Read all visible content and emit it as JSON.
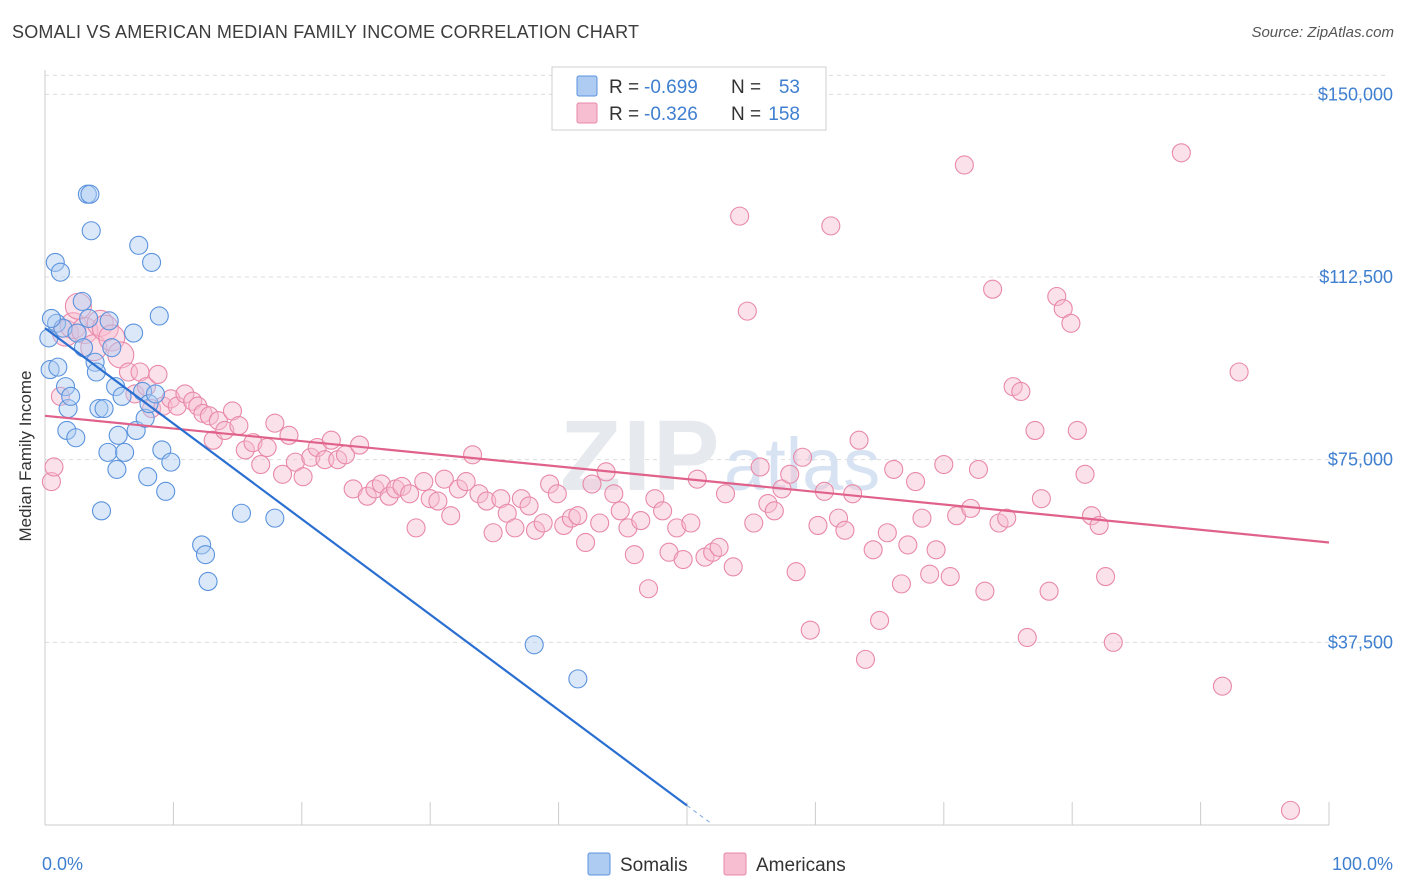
{
  "title": "SOMALI VS AMERICAN MEDIAN FAMILY INCOME CORRELATION CHART",
  "source": "Source: ZipAtlas.com",
  "watermark": {
    "part1": "ZIP",
    "part2": "atlas"
  },
  "legend": {
    "r_label": "R =",
    "n_label": "N =",
    "rows": [
      {
        "r": "-0.699",
        "n": "53"
      },
      {
        "r": "-0.326",
        "n": "158"
      }
    ]
  },
  "colors": {
    "somali_fill": "#aecbf2",
    "somali_stroke": "#5b93dd",
    "somali_line": "#2a6fd1",
    "american_fill": "#f7bdd0",
    "american_stroke": "#e889a8",
    "american_line": "#e0628a"
  },
  "chart_data": {
    "type": "scatter",
    "title": "SOMALI VS AMERICAN MEDIAN FAMILY INCOME CORRELATION CHART",
    "xlabel": "",
    "ylabel": "Median Family Income",
    "x_range": [
      0,
      100
    ],
    "y_range": [
      0,
      155000
    ],
    "x_tick_labels": [
      "0.0%",
      "100.0%"
    ],
    "y_ticks": [
      {
        "value": 37500,
        "label": "$37,500"
      },
      {
        "value": 75000,
        "label": "$75,000"
      },
      {
        "value": 112500,
        "label": "$112,500"
      },
      {
        "value": 150000,
        "label": "$150,000"
      }
    ],
    "grid": true,
    "legend_position": "bottom-center",
    "series": [
      {
        "name": "Somalis",
        "trend": {
          "x0": 0,
          "y0": 102000,
          "x1": 50,
          "y1": 4000,
          "dash_to_x": 52
        },
        "points": [
          [
            0.3,
            100000
          ],
          [
            0.4,
            93500
          ],
          [
            0.8,
            115500
          ],
          [
            0.9,
            103000
          ],
          [
            1.0,
            94000
          ],
          [
            1.2,
            113500
          ],
          [
            1.4,
            102000
          ],
          [
            1.6,
            90000
          ],
          [
            1.8,
            85500
          ],
          [
            1.7,
            81000
          ],
          [
            2.4,
            79500
          ],
          [
            2.5,
            101000
          ],
          [
            2.9,
            107500
          ],
          [
            3.0,
            98000
          ],
          [
            3.3,
            129500
          ],
          [
            3.5,
            129500
          ],
          [
            3.4,
            104000
          ],
          [
            3.6,
            122000
          ],
          [
            3.9,
            95000
          ],
          [
            4.0,
            93000
          ],
          [
            4.2,
            85500
          ],
          [
            4.4,
            64500
          ],
          [
            4.6,
            85500
          ],
          [
            4.9,
            76500
          ],
          [
            5.0,
            103500
          ],
          [
            5.2,
            98000
          ],
          [
            5.5,
            90000
          ],
          [
            5.6,
            73000
          ],
          [
            5.7,
            80000
          ],
          [
            6.0,
            88000
          ],
          [
            6.2,
            76500
          ],
          [
            6.9,
            101000
          ],
          [
            7.1,
            81000
          ],
          [
            7.3,
            119000
          ],
          [
            7.6,
            89000
          ],
          [
            7.8,
            83500
          ],
          [
            8.0,
            71500
          ],
          [
            8.1,
            86500
          ],
          [
            8.3,
            115500
          ],
          [
            8.6,
            88500
          ],
          [
            8.9,
            104500
          ],
          [
            9.1,
            77000
          ],
          [
            9.4,
            68500
          ],
          [
            9.8,
            74500
          ],
          [
            12.2,
            57500
          ],
          [
            12.5,
            55500
          ],
          [
            12.7,
            50000
          ],
          [
            15.3,
            64000
          ],
          [
            17.9,
            63000
          ],
          [
            38.1,
            37000
          ],
          [
            41.5,
            30000
          ],
          [
            0.5,
            104000
          ],
          [
            2.0,
            88000
          ]
        ]
      },
      {
        "name": "Americans",
        "trend": {
          "x0": 0,
          "y0": 84000,
          "x1": 100,
          "y1": 58000
        },
        "points": [
          [
            0.5,
            70500
          ],
          [
            0.7,
            73500
          ],
          [
            1.2,
            88000
          ],
          [
            1.6,
            101000
          ],
          [
            2.2,
            102500
          ],
          [
            2.6,
            106500
          ],
          [
            3.1,
            101500
          ],
          [
            3.8,
            98000
          ],
          [
            4.3,
            103000
          ],
          [
            4.7,
            102000
          ],
          [
            5.2,
            100000
          ],
          [
            5.9,
            96500
          ],
          [
            6.5,
            93000
          ],
          [
            7.0,
            88500
          ],
          [
            7.4,
            93000
          ],
          [
            7.9,
            90000
          ],
          [
            8.3,
            85500
          ],
          [
            8.8,
            92500
          ],
          [
            9.2,
            86000
          ],
          [
            9.8,
            87500
          ],
          [
            10.3,
            86000
          ],
          [
            10.9,
            88500
          ],
          [
            11.5,
            87000
          ],
          [
            11.9,
            86000
          ],
          [
            12.3,
            84500
          ],
          [
            12.8,
            84000
          ],
          [
            13.1,
            79000
          ],
          [
            13.5,
            83000
          ],
          [
            14.0,
            81000
          ],
          [
            14.6,
            85000
          ],
          [
            15.1,
            82000
          ],
          [
            15.6,
            77000
          ],
          [
            16.2,
            78500
          ],
          [
            16.8,
            74000
          ],
          [
            17.3,
            77500
          ],
          [
            17.9,
            82500
          ],
          [
            18.5,
            72000
          ],
          [
            19.0,
            80000
          ],
          [
            19.5,
            74500
          ],
          [
            20.1,
            71500
          ],
          [
            20.7,
            75500
          ],
          [
            21.2,
            77500
          ],
          [
            21.8,
            75000
          ],
          [
            22.3,
            79000
          ],
          [
            22.8,
            75000
          ],
          [
            23.4,
            76000
          ],
          [
            24.0,
            69000
          ],
          [
            24.5,
            78000
          ],
          [
            25.1,
            67500
          ],
          [
            25.7,
            69000
          ],
          [
            26.2,
            70000
          ],
          [
            26.8,
            67500
          ],
          [
            27.3,
            69000
          ],
          [
            27.8,
            69500
          ],
          [
            28.4,
            68000
          ],
          [
            28.9,
            61000
          ],
          [
            29.5,
            70500
          ],
          [
            30.0,
            67000
          ],
          [
            30.6,
            66500
          ],
          [
            31.1,
            71000
          ],
          [
            31.6,
            63500
          ],
          [
            32.2,
            69000
          ],
          [
            32.8,
            70500
          ],
          [
            33.3,
            76000
          ],
          [
            33.8,
            68000
          ],
          [
            34.4,
            66500
          ],
          [
            34.9,
            60000
          ],
          [
            35.5,
            67000
          ],
          [
            36.0,
            64000
          ],
          [
            36.6,
            61000
          ],
          [
            37.1,
            67000
          ],
          [
            37.7,
            65500
          ],
          [
            38.2,
            60500
          ],
          [
            38.8,
            62000
          ],
          [
            39.3,
            70000
          ],
          [
            39.9,
            68000
          ],
          [
            40.4,
            61500
          ],
          [
            41.0,
            63000
          ],
          [
            41.5,
            63500
          ],
          [
            42.1,
            58000
          ],
          [
            42.6,
            70000
          ],
          [
            43.2,
            62000
          ],
          [
            43.7,
            72500
          ],
          [
            44.3,
            68000
          ],
          [
            44.8,
            64500
          ],
          [
            45.4,
            61000
          ],
          [
            45.9,
            55500
          ],
          [
            46.4,
            62500
          ],
          [
            47.0,
            48500
          ],
          [
            47.5,
            67000
          ],
          [
            48.1,
            64500
          ],
          [
            48.6,
            56000
          ],
          [
            49.2,
            61000
          ],
          [
            49.7,
            54500
          ],
          [
            50.3,
            62000
          ],
          [
            50.8,
            71000
          ],
          [
            51.4,
            55000
          ],
          [
            52.0,
            56000
          ],
          [
            52.5,
            57000
          ],
          [
            53.0,
            68000
          ],
          [
            53.6,
            53000
          ],
          [
            54.1,
            125000
          ],
          [
            54.7,
            105500
          ],
          [
            55.2,
            62000
          ],
          [
            55.7,
            73500
          ],
          [
            56.3,
            66000
          ],
          [
            56.8,
            64500
          ],
          [
            57.4,
            69000
          ],
          [
            58.0,
            72000
          ],
          [
            58.5,
            52000
          ],
          [
            59.0,
            75500
          ],
          [
            59.6,
            40000
          ],
          [
            60.2,
            61500
          ],
          [
            60.7,
            68500
          ],
          [
            61.2,
            123000
          ],
          [
            61.8,
            63000
          ],
          [
            62.3,
            60500
          ],
          [
            62.9,
            68000
          ],
          [
            63.4,
            79000
          ],
          [
            63.9,
            34000
          ],
          [
            64.5,
            56500
          ],
          [
            65.0,
            42000
          ],
          [
            65.6,
            60000
          ],
          [
            66.1,
            73000
          ],
          [
            66.7,
            49500
          ],
          [
            67.2,
            57500
          ],
          [
            67.8,
            70500
          ],
          [
            68.3,
            63000
          ],
          [
            68.9,
            51500
          ],
          [
            69.4,
            56500
          ],
          [
            70.0,
            74000
          ],
          [
            70.5,
            51000
          ],
          [
            71.0,
            63500
          ],
          [
            71.6,
            135500
          ],
          [
            72.1,
            65000
          ],
          [
            72.7,
            73000
          ],
          [
            73.2,
            48000
          ],
          [
            73.8,
            110000
          ],
          [
            74.3,
            62000
          ],
          [
            74.9,
            63000
          ],
          [
            75.4,
            90000
          ],
          [
            76.0,
            89000
          ],
          [
            76.5,
            38500
          ],
          [
            77.1,
            81000
          ],
          [
            77.6,
            67000
          ],
          [
            78.2,
            48000
          ],
          [
            78.8,
            108500
          ],
          [
            79.3,
            106000
          ],
          [
            79.9,
            103000
          ],
          [
            80.4,
            81000
          ],
          [
            81.0,
            72000
          ],
          [
            81.5,
            63500
          ],
          [
            82.1,
            61500
          ],
          [
            82.6,
            51000
          ],
          [
            83.2,
            37500
          ],
          [
            88.5,
            138000
          ],
          [
            91.7,
            28500
          ],
          [
            93.0,
            93000
          ],
          [
            97.0,
            3000
          ]
        ]
      }
    ]
  }
}
